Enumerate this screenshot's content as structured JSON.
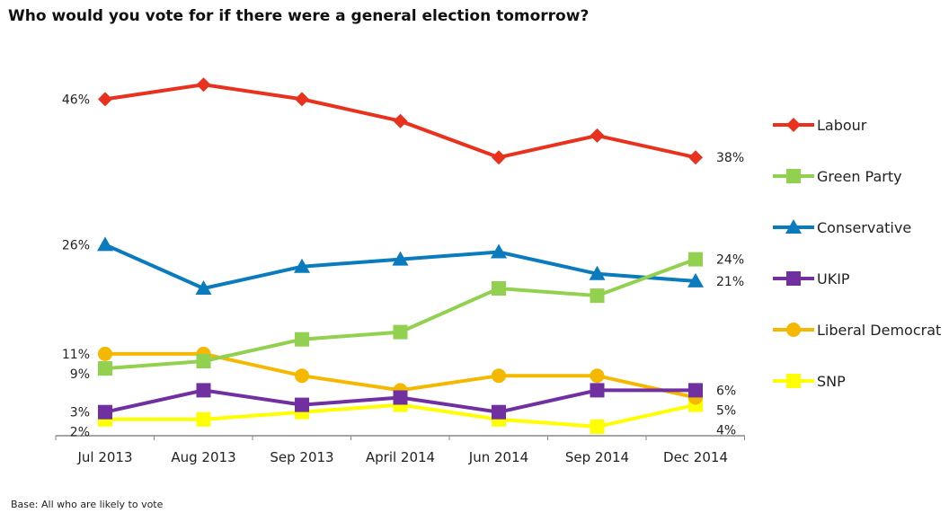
{
  "chart_data": {
    "type": "line",
    "title": "Who would you vote for if there were a general election tomorrow?",
    "footnote": "Base: All who are likely to vote",
    "categories": [
      "Jul 2013",
      "Aug 2013",
      "Sep 2013",
      "April 2014",
      "Jun 2014",
      "Sep 2014",
      "Dec 2014"
    ],
    "ylim": [
      0,
      50
    ],
    "grid": false,
    "legend_placement": "right",
    "series": [
      {
        "name": "Labour",
        "color": "#e8321e",
        "marker": "diamond",
        "values": [
          46,
          48,
          46,
          43,
          38,
          41,
          38
        ]
      },
      {
        "name": "Green Party",
        "color": "#92d050",
        "marker": "square",
        "values": [
          9,
          10,
          13,
          14,
          20,
          19,
          24
        ]
      },
      {
        "name": "Conservative",
        "color": "#0a7bbd",
        "marker": "triangle",
        "values": [
          26,
          20,
          23,
          24,
          25,
          22,
          21
        ]
      },
      {
        "name": "UKIP",
        "color": "#7030a0",
        "marker": "square",
        "values": [
          3,
          6,
          4,
          5,
          3,
          6,
          6
        ]
      },
      {
        "name": "Liberal Democrat",
        "color": "#f5b800",
        "marker": "circle",
        "values": [
          11,
          11,
          8,
          6,
          8,
          8,
          5
        ]
      },
      {
        "name": "SNP",
        "color": "#ffff00",
        "marker": "square",
        "values": [
          2,
          2,
          3,
          4,
          2,
          1,
          4
        ]
      }
    ],
    "data_labels": [
      {
        "text": "46%",
        "side": "left",
        "value": 46
      },
      {
        "text": "26%",
        "side": "left",
        "value": 26
      },
      {
        "text": "11%",
        "side": "left",
        "value": 11
      },
      {
        "text": "9%",
        "side": "left",
        "value": 9
      },
      {
        "text": "3%",
        "side": "left",
        "value": 3
      },
      {
        "text": "2%",
        "side": "left",
        "value": 2
      },
      {
        "text": "38%",
        "side": "right",
        "value": 38
      },
      {
        "text": "24%",
        "side": "right",
        "value": 24
      },
      {
        "text": "21%",
        "side": "right",
        "value": 21
      },
      {
        "text": "6%",
        "side": "right",
        "value": 6
      },
      {
        "text": "5%",
        "side": "right",
        "value": 5
      },
      {
        "text": "4%",
        "side": "right",
        "value": 4
      }
    ]
  }
}
